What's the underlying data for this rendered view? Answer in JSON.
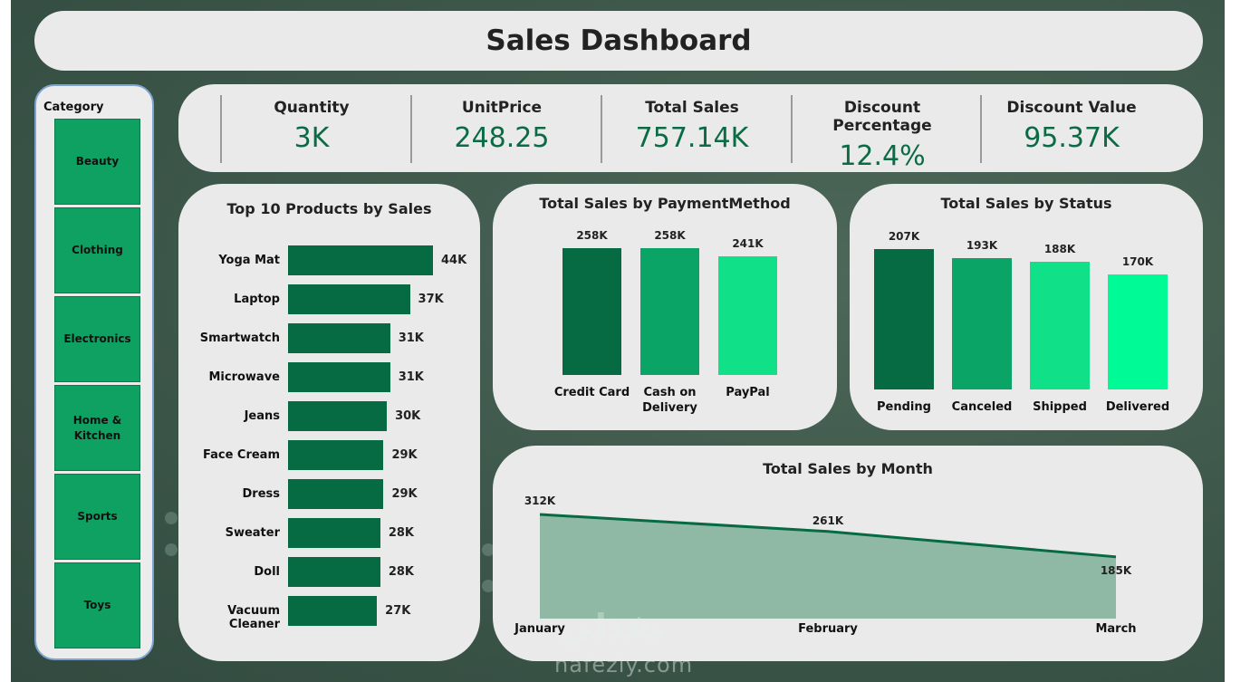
{
  "dashboard": {
    "title": "Sales Dashboard"
  },
  "slicer": {
    "title": "Category",
    "items": [
      {
        "label": "Beauty"
      },
      {
        "label": "Clothing"
      },
      {
        "label": "Electronics"
      },
      {
        "label": "Home &\nKitchen"
      },
      {
        "label": "Sports"
      },
      {
        "label": "Toys"
      }
    ]
  },
  "kpis": [
    {
      "label": "Quantity",
      "value": "3K"
    },
    {
      "label": "UnitPrice",
      "value": "248.25"
    },
    {
      "label": "Total Sales",
      "value": "757.14K"
    },
    {
      "label": "Discount Percentage",
      "value": "12.4%"
    },
    {
      "label": "Discount Value",
      "value": "95.37K"
    }
  ],
  "colors": {
    "dark_green": "#066a43",
    "mid_green": "#0aa566",
    "light_green": "#10e188",
    "bright_green": "#00fa96",
    "area_fill": "#8fb9a4"
  },
  "watermark": {
    "arabic": "نفذلي",
    "latin": "nafezly.com"
  },
  "chart_data": [
    {
      "type": "bar",
      "orientation": "horizontal",
      "title": "Top 10 Products by Sales",
      "categories": [
        "Yoga Mat",
        "Laptop",
        "Smartwatch",
        "Microwave",
        "Jeans",
        "Face Cream",
        "Dress",
        "Sweater",
        "Doll",
        "Vacuum Cleaner"
      ],
      "values": [
        44,
        37,
        31,
        31,
        30,
        29,
        29,
        28,
        28,
        27
      ],
      "labels": [
        "44K",
        "37K",
        "31K",
        "31K",
        "30K",
        "29K",
        "29K",
        "28K",
        "28K",
        "27K"
      ],
      "unit": "K"
    },
    {
      "type": "bar",
      "title": "Total Sales by PaymentMethod",
      "categories": [
        "Credit Card",
        "Cash on\nDelivery",
        "PayPal"
      ],
      "values": [
        258,
        258,
        241
      ],
      "labels": [
        "258K",
        "258K",
        "241K"
      ],
      "colors": [
        "#066a43",
        "#0aa566",
        "#10e188"
      ],
      "unit": "K"
    },
    {
      "type": "bar",
      "title": "Total Sales by Status",
      "categories": [
        "Pending",
        "Canceled",
        "Shipped",
        "Delivered"
      ],
      "values": [
        207,
        193,
        188,
        170
      ],
      "labels": [
        "207K",
        "193K",
        "188K",
        "170K"
      ],
      "colors": [
        "#066a43",
        "#0aa566",
        "#10e188",
        "#00fa96"
      ],
      "unit": "K"
    },
    {
      "type": "area",
      "title": "Total Sales by Month",
      "categories": [
        "January",
        "February",
        "March"
      ],
      "values": [
        312,
        261,
        185
      ],
      "labels": [
        "312K",
        "261K",
        "185K"
      ],
      "unit": "K"
    }
  ]
}
